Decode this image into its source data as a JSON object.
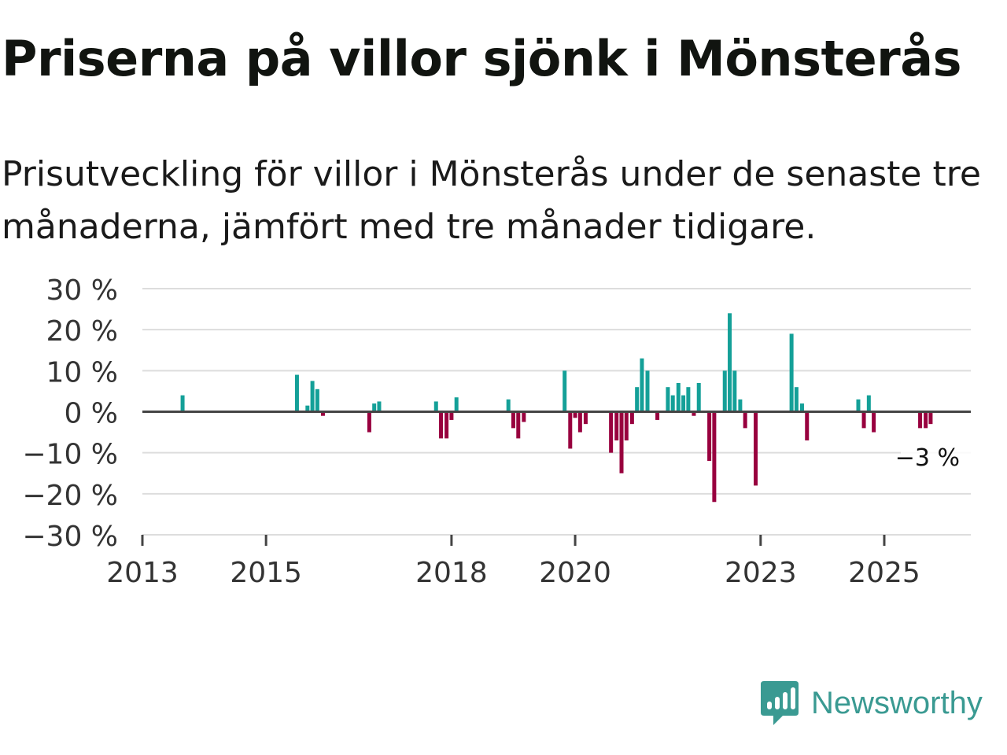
{
  "title": "Priserna på villor sjönk i Mönsterås",
  "subtitle": "Prisutveckling för villor i Mönsterås under de senaste tre månaderna, jämfört med tre månader tidigare.",
  "brand": {
    "name": "Newsworthy",
    "color": "#3a9a92",
    "icon": "newsworthy-logo-icon"
  },
  "colors": {
    "positive": "#14a098",
    "negative": "#98003e",
    "grid": "#dddddd",
    "zero_line": "#444444"
  },
  "chart_data": {
    "type": "bar",
    "title": "Priserna på villor sjönk i Mönsterås",
    "xlabel": "",
    "ylabel": "",
    "ylim": [
      -30,
      30
    ],
    "y_ticks": [
      30,
      20,
      10,
      0,
      -10,
      -20,
      -30
    ],
    "y_tick_labels": [
      "30 %",
      "20 %",
      "10 %",
      "0 %",
      "−10 %",
      "−20 %",
      "−30 %"
    ],
    "x_range": [
      2013.0,
      2026.4
    ],
    "x_ticks": [
      2013,
      2015,
      2018,
      2020,
      2023,
      2025
    ],
    "x_tick_labels": [
      "2013",
      "2015",
      "2018",
      "2020",
      "2023",
      "2025"
    ],
    "last_value_label": "−3 %",
    "points": [
      {
        "x": 2013.65,
        "value": 4
      },
      {
        "x": 2015.5,
        "value": 9
      },
      {
        "x": 2015.67,
        "value": 1.5
      },
      {
        "x": 2015.75,
        "value": 7.5
      },
      {
        "x": 2015.83,
        "value": 5.5
      },
      {
        "x": 2015.92,
        "value": -1
      },
      {
        "x": 2016.67,
        "value": -5
      },
      {
        "x": 2016.75,
        "value": 2
      },
      {
        "x": 2016.83,
        "value": 2.5
      },
      {
        "x": 2017.75,
        "value": 2.5
      },
      {
        "x": 2017.83,
        "value": -6.5
      },
      {
        "x": 2017.92,
        "value": -6.5
      },
      {
        "x": 2018.0,
        "value": -2
      },
      {
        "x": 2018.08,
        "value": 3.5
      },
      {
        "x": 2018.92,
        "value": 3
      },
      {
        "x": 2019.0,
        "value": -4
      },
      {
        "x": 2019.08,
        "value": -6.5
      },
      {
        "x": 2019.17,
        "value": -2.5
      },
      {
        "x": 2019.83,
        "value": 10
      },
      {
        "x": 2019.92,
        "value": -9
      },
      {
        "x": 2020.0,
        "value": -1.5
      },
      {
        "x": 2020.08,
        "value": -5
      },
      {
        "x": 2020.17,
        "value": -3
      },
      {
        "x": 2020.58,
        "value": -10
      },
      {
        "x": 2020.67,
        "value": -7
      },
      {
        "x": 2020.75,
        "value": -15
      },
      {
        "x": 2020.83,
        "value": -7
      },
      {
        "x": 2020.92,
        "value": -3
      },
      {
        "x": 2021.0,
        "value": 6
      },
      {
        "x": 2021.08,
        "value": 13
      },
      {
        "x": 2021.17,
        "value": 10
      },
      {
        "x": 2021.33,
        "value": -2
      },
      {
        "x": 2021.5,
        "value": 6
      },
      {
        "x": 2021.58,
        "value": 4
      },
      {
        "x": 2021.67,
        "value": 7
      },
      {
        "x": 2021.75,
        "value": 4
      },
      {
        "x": 2021.83,
        "value": 6
      },
      {
        "x": 2021.92,
        "value": -1
      },
      {
        "x": 2022.0,
        "value": 7
      },
      {
        "x": 2022.17,
        "value": -12
      },
      {
        "x": 2022.25,
        "value": -22
      },
      {
        "x": 2022.42,
        "value": 10
      },
      {
        "x": 2022.5,
        "value": 24
      },
      {
        "x": 2022.58,
        "value": 10
      },
      {
        "x": 2022.67,
        "value": 3
      },
      {
        "x": 2022.75,
        "value": -4
      },
      {
        "x": 2022.92,
        "value": -18
      },
      {
        "x": 2023.5,
        "value": 19
      },
      {
        "x": 2023.58,
        "value": 6
      },
      {
        "x": 2023.67,
        "value": 2
      },
      {
        "x": 2023.75,
        "value": -7
      },
      {
        "x": 2024.58,
        "value": 3
      },
      {
        "x": 2024.67,
        "value": -4
      },
      {
        "x": 2024.75,
        "value": 4
      },
      {
        "x": 2024.83,
        "value": -5
      },
      {
        "x": 2025.58,
        "value": -4
      },
      {
        "x": 2025.67,
        "value": -4
      },
      {
        "x": 2025.75,
        "value": -3
      }
    ]
  }
}
